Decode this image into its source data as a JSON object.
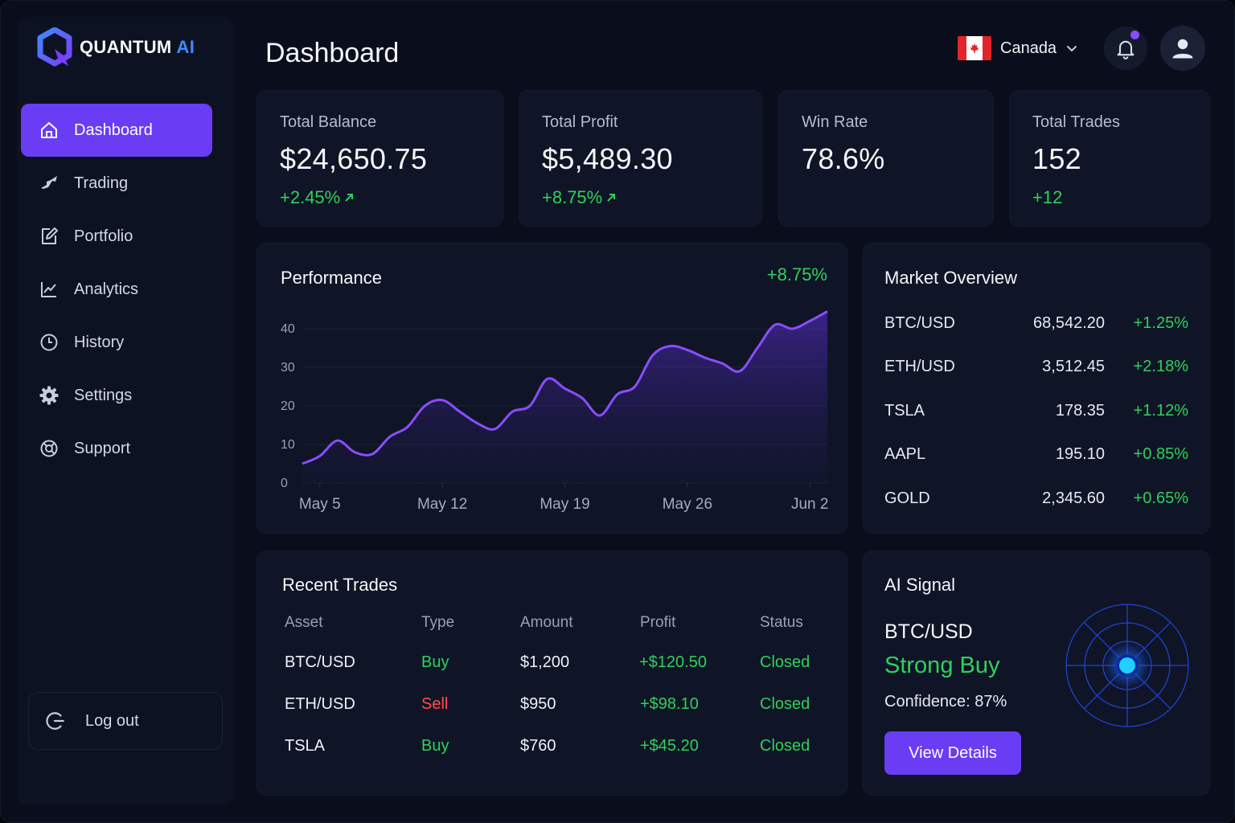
{
  "brand": {
    "name": "QUANTUM",
    "suffix": "AI"
  },
  "sidebar": {
    "items": [
      {
        "label": "Dashboard",
        "icon": "home-icon",
        "active": true
      },
      {
        "label": "Trading",
        "icon": "trading-icon"
      },
      {
        "label": "Portfolio",
        "icon": "portfolio-icon"
      },
      {
        "label": "Analytics",
        "icon": "analytics-icon"
      },
      {
        "label": "History",
        "icon": "history-icon"
      },
      {
        "label": "Settings",
        "icon": "gear-icon"
      },
      {
        "label": "Support",
        "icon": "support-icon"
      }
    ],
    "logout_label": "Log out"
  },
  "header": {
    "title": "Dashboard",
    "country": "Canada",
    "accent": "#6a3cf4",
    "notification_dot_color": "#8b4dff"
  },
  "stats": [
    {
      "label": "Total Balance",
      "value": "$24,650.75",
      "delta": "+2.45%",
      "arrow": true
    },
    {
      "label": "Total Profit",
      "value": "$5,489.30",
      "delta": "+8.75%",
      "arrow": true
    },
    {
      "label": "Win Rate",
      "value": "78.6%",
      "delta": ""
    },
    {
      "label": "Total Trades",
      "value": "152",
      "delta": "+12"
    }
  ],
  "performance": {
    "title": "Performance",
    "change": "+8.75%"
  },
  "chart_data": {
    "type": "area",
    "title": "Performance",
    "xlabel": "",
    "ylabel": "",
    "ylim": [
      0,
      45
    ],
    "yticks": [
      "0",
      "10",
      "20",
      "30",
      "40"
    ],
    "xtick_labels": [
      "May 5",
      "May 12",
      "May 19",
      "May 26",
      "Jun 2"
    ],
    "grid": true,
    "line_color": "#8a4dff",
    "x": [
      "May 4",
      "May 5",
      "May 6",
      "May 7",
      "May 8",
      "May 9",
      "May 10",
      "May 11",
      "May 12",
      "May 13",
      "May 14",
      "May 15",
      "May 16",
      "May 17",
      "May 18",
      "May 19",
      "May 20",
      "May 21",
      "May 22",
      "May 23",
      "May 24",
      "May 25",
      "May 26",
      "May 27",
      "May 28",
      "May 29",
      "May 30",
      "May 31",
      "Jun 1",
      "Jun 2",
      "Jun 3"
    ],
    "values": [
      5,
      7,
      11,
      8,
      7.5,
      12,
      14.5,
      20,
      21.5,
      18.5,
      15.5,
      14,
      18.5,
      20,
      27,
      24.5,
      22,
      17.5,
      23,
      25,
      33,
      35.5,
      34.5,
      32.5,
      31,
      29,
      35,
      41,
      40,
      42,
      44.5
    ]
  },
  "market": {
    "title": "Market Overview",
    "rows": [
      {
        "symbol": "BTC/USD",
        "price": "68,542.20",
        "change": "+1.25%"
      },
      {
        "symbol": "ETH/USD",
        "price": "3,512.45",
        "change": "+2.18%"
      },
      {
        "symbol": "TSLA",
        "price": "178.35",
        "change": "+1.12%"
      },
      {
        "symbol": "AAPL",
        "price": "195.10",
        "change": "+0.85%"
      },
      {
        "symbol": "GOLD",
        "price": "2,345.60",
        "change": "+0.65%"
      }
    ]
  },
  "trades": {
    "title": "Recent Trades",
    "columns": [
      "Asset",
      "Type",
      "Amount",
      "Profit",
      "Status"
    ],
    "rows": [
      {
        "asset": "BTC/USD",
        "type": "Buy",
        "amount": "$1,200",
        "profit": "+$120.50",
        "status": "Closed"
      },
      {
        "asset": "ETH/USD",
        "type": "Sell",
        "amount": "$950",
        "profit": "+$98.10",
        "status": "Closed"
      },
      {
        "asset": "TSLA",
        "type": "Buy",
        "amount": "$760",
        "profit": "+$45.20",
        "status": "Closed"
      }
    ]
  },
  "signal": {
    "title": "AI Signal",
    "pair": "BTC/USD",
    "recommendation": "Strong Buy",
    "confidence": "Confidence: 87%",
    "button": "View Details"
  }
}
